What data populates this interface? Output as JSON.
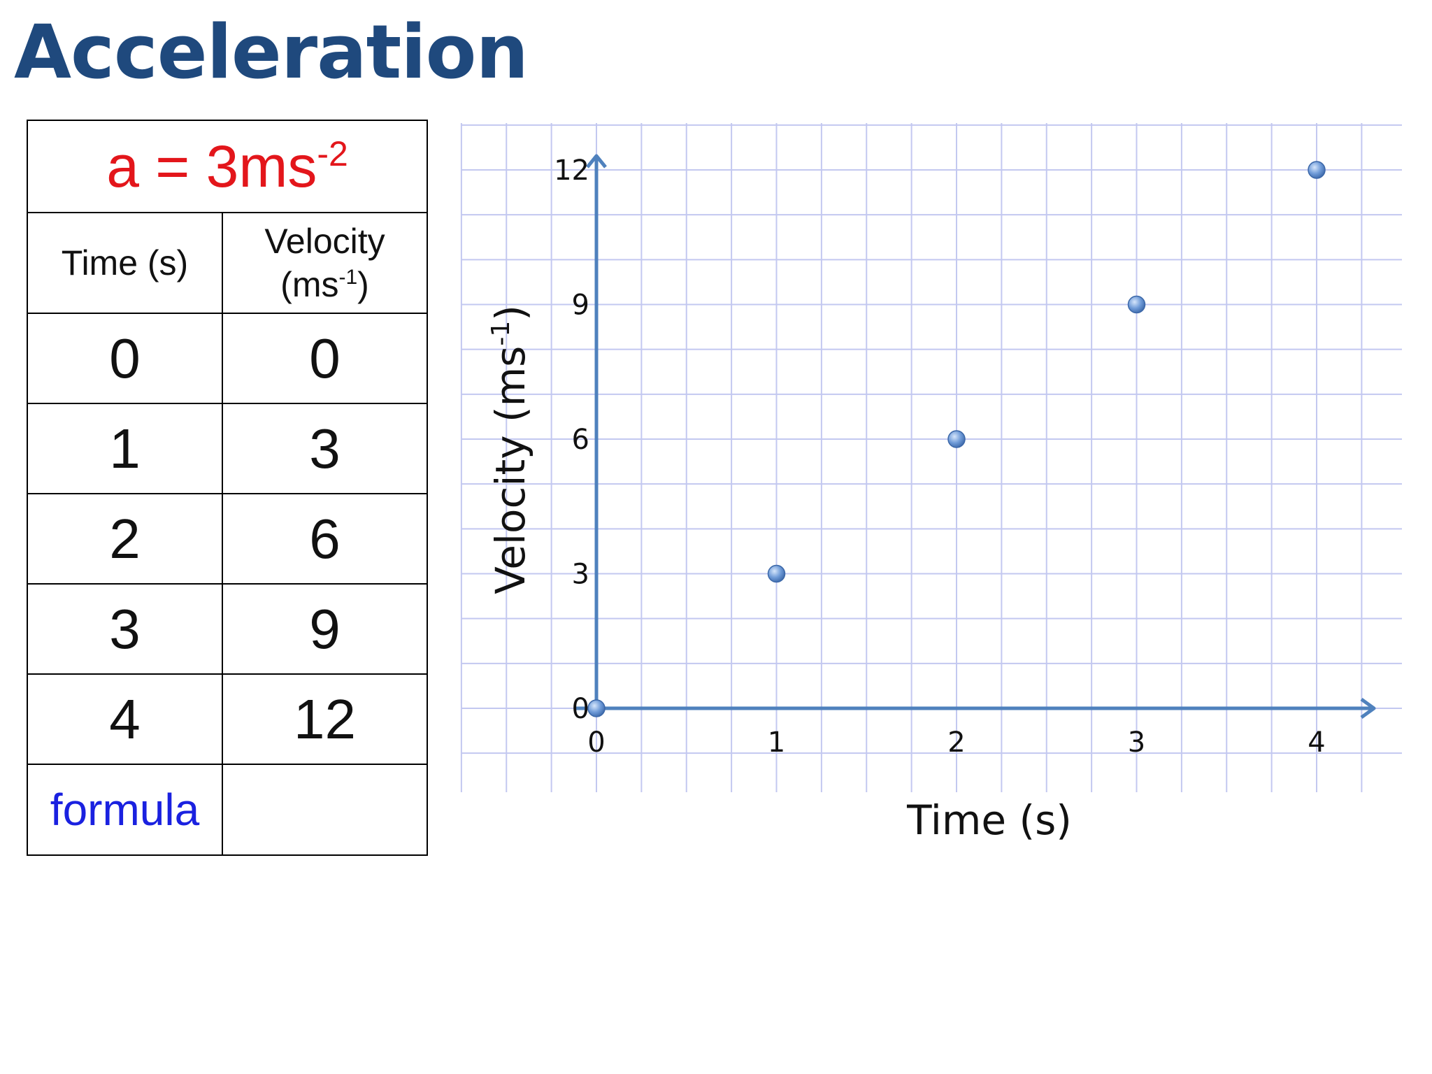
{
  "slide": {
    "title": "Acceleration"
  },
  "table": {
    "acceleration": {
      "prefix": "a = 3ms",
      "exponent": "-2"
    },
    "headers": {
      "time": "Time (s)",
      "velocity_line1": "Velocity",
      "velocity_unit": "(ms",
      "velocity_exponent": "-1",
      "velocity_close": ")"
    },
    "rows": [
      {
        "time": "0",
        "velocity": "0"
      },
      {
        "time": "1",
        "velocity": "3"
      },
      {
        "time": "2",
        "velocity": "6"
      },
      {
        "time": "3",
        "velocity": "9"
      },
      {
        "time": "4",
        "velocity": "12"
      }
    ],
    "formula_label": "formula",
    "formula_value": ""
  },
  "chart_data": {
    "type": "scatter",
    "x": [
      0,
      1,
      2,
      3,
      4
    ],
    "y": [
      0,
      3,
      6,
      9,
      12
    ],
    "xlabel": "Time (s)",
    "ylabel": "Velocity (ms",
    "ylabel_exponent": "-1",
    "ylabel_close": ")",
    "xlim": [
      0,
      4
    ],
    "ylim": [
      0,
      12
    ],
    "xticks": [
      "0",
      "1",
      "2",
      "3",
      "4"
    ],
    "yticks": [
      "0",
      "3",
      "6",
      "9",
      "12"
    ],
    "ytick_values": [
      0,
      3,
      6,
      9,
      12
    ],
    "grid": true,
    "colors": {
      "grid": "#c3c8f0",
      "axis": "#4f81bd",
      "point": "#4f81bd",
      "point_highlight": "#a9c6ef"
    }
  }
}
